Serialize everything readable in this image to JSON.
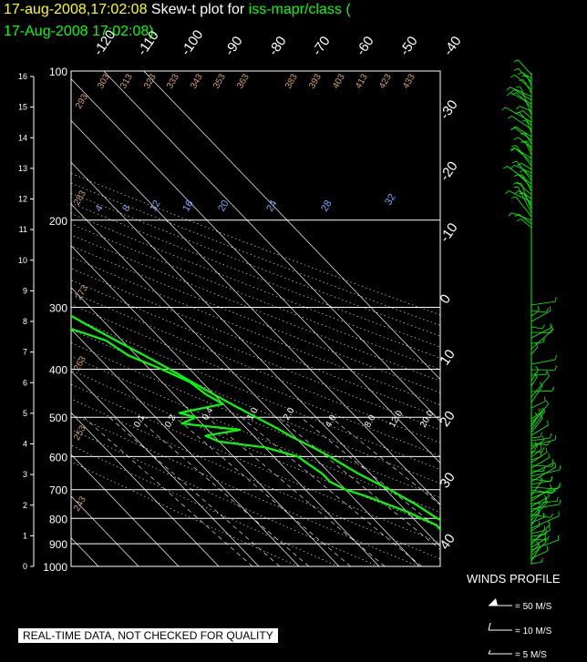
{
  "header": {
    "timestamp": "17-aug-2008,17:02:08",
    "plot_label": "Skew-t plot for",
    "platform": "iss-mapr/class (",
    "platform_time": "17-Aug-2008 17:02:08)."
  },
  "chart_data": {
    "type": "line",
    "pressure_levels": [
      100,
      200,
      300,
      400,
      500,
      600,
      700,
      800,
      900,
      1000
    ],
    "pressure_labels": [
      "100",
      "200",
      "300",
      "400",
      "500",
      "600",
      "700",
      "800",
      "900",
      "1000"
    ],
    "height_labels": [
      "16",
      "15",
      "14",
      "13",
      "12",
      "11",
      "10",
      "9",
      "8",
      "7",
      "6",
      "5",
      "4",
      "3",
      "2",
      "1",
      "0"
    ],
    "top_temp_labels": [
      "-120",
      "-110",
      "-100",
      "-90",
      "-80",
      "-70",
      "-60",
      "-50",
      "-40"
    ],
    "right_temp_labels": [
      "-30",
      "-20",
      "-10",
      "0",
      "10",
      "20",
      "30",
      "40"
    ],
    "theta_labels": [
      "293",
      "303",
      "313",
      "323",
      "333",
      "343",
      "353",
      "363",
      "383",
      "393",
      "403",
      "413",
      "423",
      "433"
    ],
    "theta_left_labels": [
      "283",
      "273",
      "263",
      "253",
      "243"
    ],
    "thetae_labels": [
      "4",
      "8",
      "12",
      "16",
      "20",
      "24",
      "28",
      "32"
    ],
    "mixing_labels": [
      "0.1",
      "0.2",
      "0.4",
      "1.0",
      "2.0",
      "4.0",
      "8.0",
      "12.0",
      "20.0"
    ],
    "series": [
      {
        "name": "",
        "color": "#00ff00",
        "points": [
          [
            1000,
            24.5
          ],
          [
            975,
            25.5
          ],
          [
            950,
            25.8
          ],
          [
            925,
            24
          ],
          [
            900,
            22.5
          ],
          [
            875,
            21
          ],
          [
            850,
            19
          ],
          [
            825,
            17.5
          ],
          [
            800,
            16
          ],
          [
            775,
            15
          ],
          [
            750,
            14
          ],
          [
            725,
            12.5
          ],
          [
            700,
            11
          ],
          [
            675,
            9
          ],
          [
            650,
            7
          ],
          [
            625,
            5.5
          ],
          [
            600,
            4
          ],
          [
            575,
            2
          ],
          [
            550,
            -0.5
          ],
          [
            525,
            -2.5
          ],
          [
            500,
            -5
          ],
          [
            475,
            -7.5
          ],
          [
            450,
            -10
          ],
          [
            425,
            -12.5
          ],
          [
            400,
            -15
          ],
          [
            375,
            -18
          ],
          [
            350,
            -21.5
          ],
          [
            325,
            -25
          ],
          [
            300,
            -28.5
          ],
          [
            275,
            -33
          ],
          [
            250,
            -37.5
          ],
          [
            225,
            -43
          ],
          [
            200,
            -48
          ],
          [
            180,
            -53
          ],
          [
            160,
            -57
          ],
          [
            140,
            -59
          ],
          [
            125,
            -61
          ],
          [
            115,
            -62
          ],
          [
            105,
            -63
          ],
          [
            100,
            -62
          ]
        ]
      },
      {
        "name": "",
        "color": "#00ff00",
        "points": [
          [
            1000,
            17
          ],
          [
            975,
            15.5
          ],
          [
            950,
            16
          ],
          [
            925,
            15
          ],
          [
            900,
            14.5
          ],
          [
            875,
            15
          ],
          [
            850,
            14
          ],
          [
            825,
            14.2
          ],
          [
            800,
            12
          ],
          [
            775,
            10
          ],
          [
            750,
            7
          ],
          [
            725,
            4
          ],
          [
            700,
            0
          ],
          [
            675,
            -2
          ],
          [
            650,
            -2
          ],
          [
            625,
            -3
          ],
          [
            600,
            -4
          ],
          [
            575,
            -10
          ],
          [
            560,
            -20
          ],
          [
            545,
            -22
          ],
          [
            530,
            -12
          ],
          [
            515,
            -25
          ],
          [
            500,
            -20
          ],
          [
            490,
            -23
          ],
          [
            470,
            -10
          ],
          [
            450,
            -12
          ],
          [
            425,
            -13
          ],
          [
            400,
            -17
          ],
          [
            375,
            -22
          ],
          [
            350,
            -24
          ],
          [
            325,
            -32
          ],
          [
            300,
            -40
          ],
          [
            290,
            -38
          ],
          [
            270,
            -46
          ],
          [
            255,
            -42
          ],
          [
            240,
            -52
          ],
          [
            225,
            -53
          ],
          [
            210,
            -56
          ],
          [
            200,
            -58
          ],
          [
            180,
            -63
          ],
          [
            160,
            -71
          ],
          [
            140,
            -73
          ],
          [
            125,
            -69
          ],
          [
            115,
            -69
          ],
          [
            105,
            -70
          ],
          [
            100,
            -68
          ]
        ]
      }
    ]
  },
  "winds_profile": {
    "title": "WINDS PROFILE"
  },
  "legend": [
    {
      "label": "= 50 M/S"
    },
    {
      "label": "= 10 M/S"
    },
    {
      "label": "= 5 M/S"
    }
  ],
  "disclaimer": "REAL-TIME DATA, NOT CHECKED FOR QUALITY",
  "colors": {
    "title_yellow": "#ffff00",
    "title_green": "#00ff00",
    "theta_label": "#d2a06e",
    "thetae_label": "#7faaff",
    "trace": "#00ff00",
    "wind_barb": "#00ff00"
  }
}
